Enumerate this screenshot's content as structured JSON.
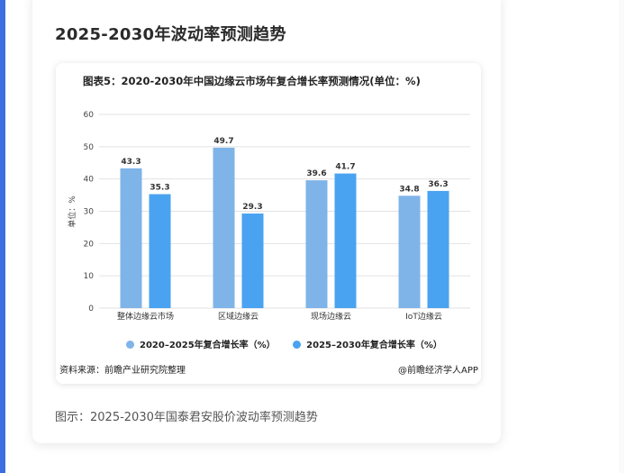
{
  "section_title": "2025-2030年波动率预测趋势",
  "caption": "图示：2025-2030年国泰君安股价波动率预测趋势",
  "colors": {
    "series1": "#7fb4e8",
    "series2": "#4aa3f0",
    "accent": "#3b6fe0"
  },
  "chart_data": {
    "type": "bar",
    "title": "图表5：2020-2030年中国边缘云市场年复合增长率预测情况(单位：%)",
    "ylabel": "单位：%",
    "xlabel": "",
    "ylim": [
      0,
      60
    ],
    "yticks": [
      0,
      10,
      20,
      30,
      40,
      50,
      60
    ],
    "grid": true,
    "legend_position": "bottom",
    "categories": [
      "整体边缘云市场",
      "区域边缘云",
      "现场边缘云",
      "IoT边缘云"
    ],
    "series": [
      {
        "name": "2020–2025年复合增长率（%）",
        "values": [
          43.3,
          49.7,
          39.6,
          34.8
        ]
      },
      {
        "name": "2025–2030年复合增长率（%）",
        "values": [
          35.3,
          29.3,
          41.7,
          36.3
        ]
      }
    ],
    "source": "资料来源：前瞻产业研究院整理",
    "credit": "@前瞻经济学人APP"
  }
}
